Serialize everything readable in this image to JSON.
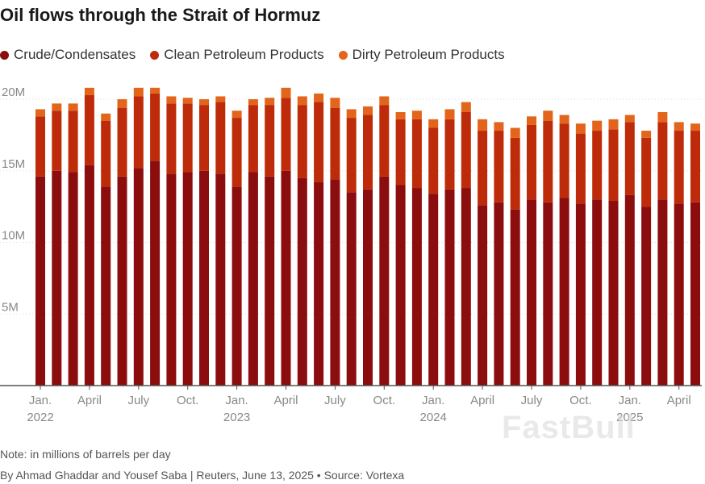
{
  "title": "Oil flows through the Strait of Hormuz",
  "note": "Note: in millions of barrels per day",
  "credit": "By Ahmad Ghaddar and Yousef Saba | Reuters, June 13, 2025 • Source: Vortexa",
  "watermark": "FastBull",
  "colors": {
    "crude": "#8b0d0d",
    "clean": "#be2b0a",
    "dirty": "#e3651b"
  },
  "chart_data": {
    "type": "bar",
    "stacked": true,
    "title": "Oil flows through the Strait of Hormuz",
    "xlabel": "",
    "ylabel": "",
    "ylim": [
      0,
      20000000
    ],
    "yticks": [
      {
        "value": 5000000,
        "label": "5M"
      },
      {
        "value": 10000000,
        "label": "10M"
      },
      {
        "value": 15000000,
        "label": "15M"
      },
      {
        "value": 20000000,
        "label": "20M"
      }
    ],
    "grid": true,
    "legend": "top-left",
    "categories": [
      "2022-01",
      "2022-02",
      "2022-03",
      "2022-04",
      "2022-05",
      "2022-06",
      "2022-07",
      "2022-08",
      "2022-09",
      "2022-10",
      "2022-11",
      "2022-12",
      "2023-01",
      "2023-02",
      "2023-03",
      "2023-04",
      "2023-05",
      "2023-06",
      "2023-07",
      "2023-08",
      "2023-09",
      "2023-10",
      "2023-11",
      "2023-12",
      "2024-01",
      "2024-02",
      "2024-03",
      "2024-04",
      "2024-05",
      "2024-06",
      "2024-07",
      "2024-08",
      "2024-09",
      "2024-10",
      "2024-11",
      "2024-12",
      "2025-01",
      "2025-02",
      "2025-03",
      "2025-04",
      "2025-05"
    ],
    "x_tick_labels": [
      {
        "index": 0,
        "line1": "Jan.",
        "line2": "2022"
      },
      {
        "index": 3,
        "line1": "April",
        "line2": ""
      },
      {
        "index": 6,
        "line1": "July",
        "line2": ""
      },
      {
        "index": 9,
        "line1": "Oct.",
        "line2": ""
      },
      {
        "index": 12,
        "line1": "Jan.",
        "line2": "2023"
      },
      {
        "index": 15,
        "line1": "April",
        "line2": ""
      },
      {
        "index": 18,
        "line1": "July",
        "line2": ""
      },
      {
        "index": 21,
        "line1": "Oct.",
        "line2": ""
      },
      {
        "index": 24,
        "line1": "Jan.",
        "line2": "2024"
      },
      {
        "index": 27,
        "line1": "April",
        "line2": ""
      },
      {
        "index": 30,
        "line1": "July",
        "line2": ""
      },
      {
        "index": 33,
        "line1": "Oct.",
        "line2": ""
      },
      {
        "index": 36,
        "line1": "Jan.",
        "line2": "2025"
      },
      {
        "index": 39,
        "line1": "April",
        "line2": ""
      }
    ],
    "series": [
      {
        "name": "Crude/Condensates",
        "color": "#8b0d0d",
        "values": [
          14600000,
          15000000,
          14900000,
          15400000,
          13900000,
          14600000,
          15200000,
          15700000,
          14800000,
          14900000,
          15000000,
          14800000,
          13900000,
          14900000,
          14600000,
          15000000,
          14500000,
          14200000,
          14400000,
          13500000,
          13700000,
          14600000,
          14000000,
          13800000,
          13400000,
          13700000,
          13800000,
          12600000,
          12800000,
          12300000,
          13000000,
          12800000,
          13100000,
          12700000,
          13000000,
          12900000,
          13300000,
          12500000,
          13000000,
          12700000,
          12800000
        ]
      },
      {
        "name": "Clean Petroleum Products",
        "color": "#be2b0a",
        "values": [
          4200000,
          4200000,
          4300000,
          4900000,
          4600000,
          4800000,
          5000000,
          4700000,
          4900000,
          4800000,
          4600000,
          5000000,
          4800000,
          4700000,
          5000000,
          5100000,
          5100000,
          5600000,
          5000000,
          5200000,
          5200000,
          5000000,
          4600000,
          4800000,
          4600000,
          4900000,
          5300000,
          5200000,
          5000000,
          5000000,
          5200000,
          5700000,
          5200000,
          4900000,
          4800000,
          5000000,
          5100000,
          4800000,
          5400000,
          5100000,
          5000000
        ]
      },
      {
        "name": "Dirty Petroleum Products",
        "color": "#e3651b",
        "values": [
          500000,
          500000,
          500000,
          500000,
          500000,
          600000,
          600000,
          400000,
          500000,
          400000,
          400000,
          400000,
          500000,
          400000,
          500000,
          700000,
          600000,
          600000,
          700000,
          600000,
          600000,
          600000,
          500000,
          600000,
          600000,
          700000,
          700000,
          800000,
          600000,
          700000,
          600000,
          700000,
          600000,
          700000,
          700000,
          700000,
          500000,
          500000,
          700000,
          600000,
          500000
        ]
      }
    ]
  }
}
